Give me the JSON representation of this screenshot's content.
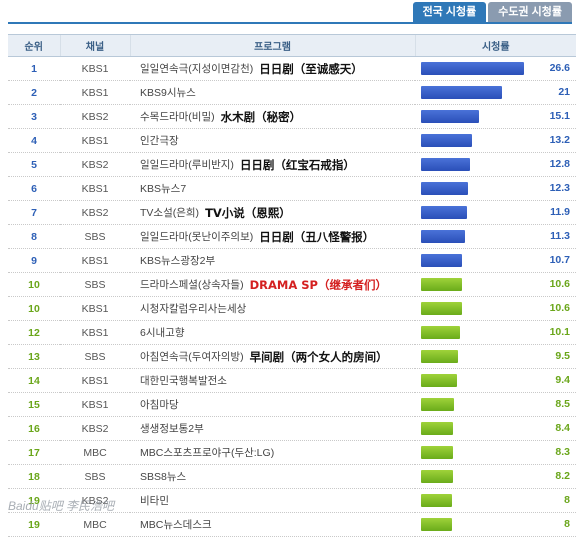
{
  "tabs": [
    {
      "label": "전국 시청률",
      "active": true
    },
    {
      "label": "수도권 시청률",
      "active": false
    }
  ],
  "headers": {
    "rank": "순위",
    "channel": "채널",
    "program": "프로그램",
    "rating": "시청률"
  },
  "max_rating": 28,
  "colors": {
    "blue": "#2a4fb8",
    "green": "#6aab1a"
  },
  "rows": [
    {
      "rank": "1",
      "channel": "KBS1",
      "program": "일일연속극(지성이면감천)",
      "annotation": "日日剧（至诚感天）",
      "anno_color": "black",
      "rating": 26.6,
      "rating_label": "26.6",
      "color": "blue"
    },
    {
      "rank": "2",
      "channel": "KBS1",
      "program": "KBS9시뉴스",
      "annotation": "",
      "anno_color": "black",
      "rating": 21,
      "rating_label": "21",
      "color": "blue"
    },
    {
      "rank": "3",
      "channel": "KBS2",
      "program": "수목드라마(비밀)",
      "annotation": "水木剧（秘密）",
      "anno_color": "black",
      "rating": 15.1,
      "rating_label": "15.1",
      "color": "blue"
    },
    {
      "rank": "4",
      "channel": "KBS1",
      "program": "인간극장",
      "annotation": "",
      "anno_color": "black",
      "rating": 13.2,
      "rating_label": "13.2",
      "color": "blue"
    },
    {
      "rank": "5",
      "channel": "KBS2",
      "program": "일일드라마(루비반지)",
      "annotation": "日日剧（红宝石戒指）",
      "anno_color": "black",
      "rating": 12.8,
      "rating_label": "12.8",
      "color": "blue"
    },
    {
      "rank": "6",
      "channel": "KBS1",
      "program": "KBS뉴스7",
      "annotation": "",
      "anno_color": "black",
      "rating": 12.3,
      "rating_label": "12.3",
      "color": "blue"
    },
    {
      "rank": "7",
      "channel": "KBS2",
      "program": "TV소설(은희)",
      "annotation": "TV小说（恩熙）",
      "anno_color": "black",
      "rating": 11.9,
      "rating_label": "11.9",
      "color": "blue"
    },
    {
      "rank": "8",
      "channel": "SBS",
      "program": "일일드라마(못난이주의보)",
      "annotation": "日日剧（丑八怪警报）",
      "anno_color": "black",
      "rating": 11.3,
      "rating_label": "11.3",
      "color": "blue"
    },
    {
      "rank": "9",
      "channel": "KBS1",
      "program": "KBS뉴스광장2부",
      "annotation": "",
      "anno_color": "black",
      "rating": 10.7,
      "rating_label": "10.7",
      "color": "blue"
    },
    {
      "rank": "10",
      "channel": "SBS",
      "program": "드라마스페셜(상속자들)",
      "annotation": "DRAMA SP（继承者们）",
      "anno_color": "red",
      "rating": 10.6,
      "rating_label": "10.6",
      "color": "green"
    },
    {
      "rank": "10",
      "channel": "KBS1",
      "program": "시청자칼럼우리사는세상",
      "annotation": "",
      "anno_color": "black",
      "rating": 10.6,
      "rating_label": "10.6",
      "color": "green"
    },
    {
      "rank": "12",
      "channel": "KBS1",
      "program": "6시내고향",
      "annotation": "",
      "anno_color": "black",
      "rating": 10.1,
      "rating_label": "10.1",
      "color": "green"
    },
    {
      "rank": "13",
      "channel": "SBS",
      "program": "아침연속극(두여자의방)",
      "annotation": "早间剧（两个女人的房间）",
      "anno_color": "black",
      "rating": 9.5,
      "rating_label": "9.5",
      "color": "green"
    },
    {
      "rank": "14",
      "channel": "KBS1",
      "program": "대한민국행복발전소",
      "annotation": "",
      "anno_color": "black",
      "rating": 9.4,
      "rating_label": "9.4",
      "color": "green"
    },
    {
      "rank": "15",
      "channel": "KBS1",
      "program": "아침마당",
      "annotation": "",
      "anno_color": "black",
      "rating": 8.5,
      "rating_label": "8.5",
      "color": "green"
    },
    {
      "rank": "16",
      "channel": "KBS2",
      "program": "생생정보통2부",
      "annotation": "",
      "anno_color": "black",
      "rating": 8.4,
      "rating_label": "8.4",
      "color": "green"
    },
    {
      "rank": "17",
      "channel": "MBC",
      "program": "MBC스포츠프로야구(두산:LG)",
      "annotation": "",
      "anno_color": "black",
      "rating": 8.3,
      "rating_label": "8.3",
      "color": "green"
    },
    {
      "rank": "18",
      "channel": "SBS",
      "program": "SBS8뉴스",
      "annotation": "",
      "anno_color": "black",
      "rating": 8.2,
      "rating_label": "8.2",
      "color": "green"
    },
    {
      "rank": "19",
      "channel": "KBS2",
      "program": "비타민",
      "annotation": "",
      "anno_color": "black",
      "rating": 8,
      "rating_label": "8",
      "color": "green"
    },
    {
      "rank": "19",
      "channel": "MBC",
      "program": "MBC뉴스데스크",
      "annotation": "",
      "anno_color": "black",
      "rating": 8,
      "rating_label": "8",
      "color": "green"
    }
  ],
  "watermark": "Baidu贴吧 李民浩吧"
}
